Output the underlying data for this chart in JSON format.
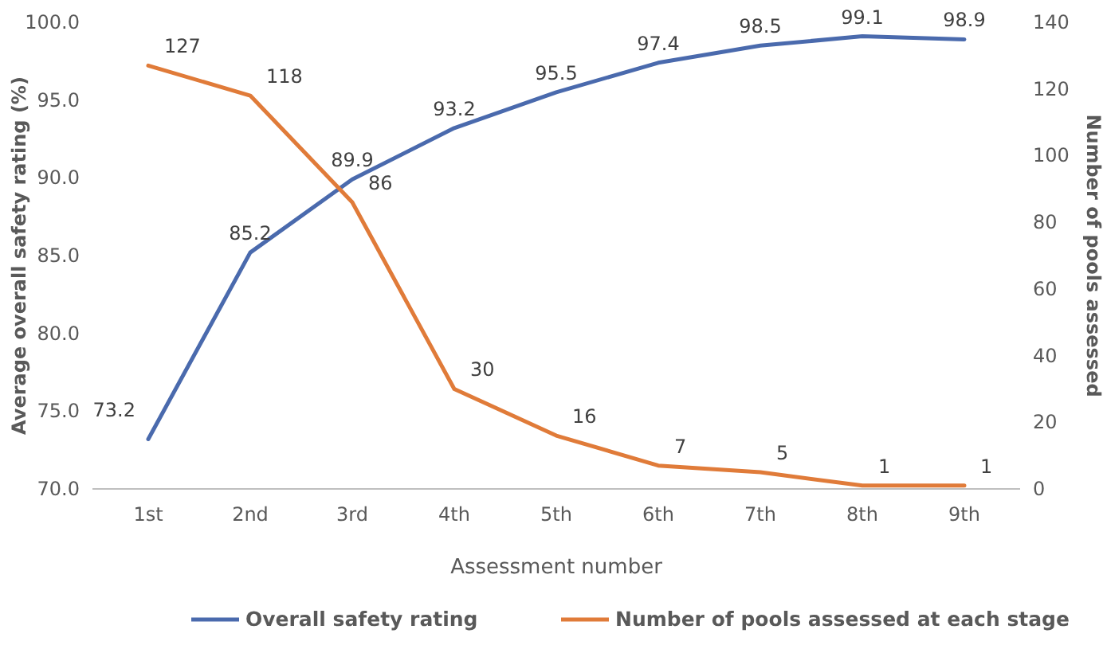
{
  "chart_data": {
    "type": "line",
    "xlabel": "Assessment number",
    "ylabel": "Average overall safety rating (%)",
    "y2label": "Number of pools assessed",
    "categories": [
      "1st",
      "2nd",
      "3rd",
      "4th",
      "5th",
      "6th",
      "7th",
      "8th",
      "9th"
    ],
    "series": [
      {
        "name": "Overall safety rating",
        "color": "#4a6aad",
        "values": [
          73.2,
          85.2,
          89.9,
          93.2,
          95.5,
          97.4,
          98.5,
          99.1,
          98.9
        ]
      },
      {
        "name": "Number of pools assessed at each stage",
        "color": "#e07b39",
        "axis": "y2",
        "values": [
          127,
          118,
          86,
          30,
          16,
          7,
          5,
          1,
          1
        ]
      }
    ],
    "ylim": [
      70,
      100
    ],
    "yticks": [
      {
        "value": 70,
        "label": "70.0"
      },
      {
        "value": 75,
        "label": "75.0"
      },
      {
        "value": 80,
        "label": "80.0"
      },
      {
        "value": 85,
        "label": "85.0"
      },
      {
        "value": 90,
        "label": "90.0"
      },
      {
        "value": 95,
        "label": "95.0"
      },
      {
        "value": 100,
        "label": "100.0"
      }
    ],
    "y2lim": [
      0,
      140
    ],
    "y2ticks": [
      0,
      20,
      40,
      60,
      80,
      100,
      120,
      140
    ],
    "data_labels": true,
    "legend": "bottom",
    "marker": "none",
    "line_style": "solid",
    "grid": false
  }
}
